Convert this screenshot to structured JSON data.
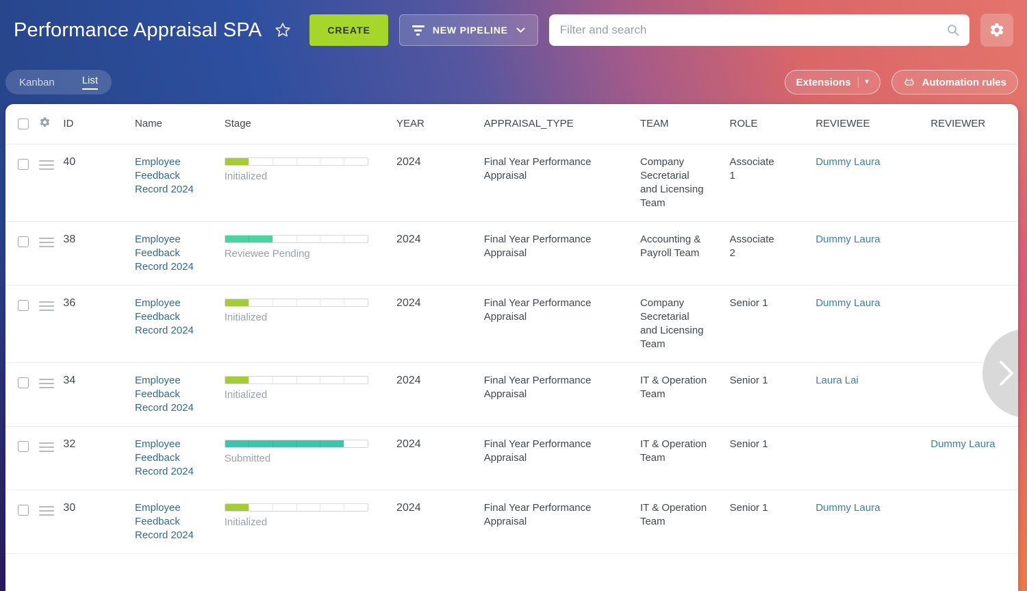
{
  "header": {
    "title": "Performance Appraisal SPA",
    "create_label": "CREATE",
    "new_pipeline_label": "NEW PIPELINE",
    "search_placeholder": "Filter and search"
  },
  "toolbar": {
    "view_kanban": "Kanban",
    "view_list": "List",
    "extensions_label": "Extensions",
    "automation_label": "Automation rules"
  },
  "icons": {
    "favorite": "star-outline",
    "new_pipeline": "funnel",
    "new_pipeline_caret": "chevron-down",
    "search": "magnifier",
    "settings": "gear",
    "columns_settings": "gear",
    "automation": "robot",
    "row_drag": "hamburger",
    "next_page": "chevron-right"
  },
  "colors": {
    "create_button": "#a6d629",
    "stage_initialized": "#a5cc34",
    "stage_reviewee_pending": "#49d5a2",
    "stage_submitted": "#3ec4ad",
    "record_link": "#306b8e",
    "person_link": "#3a7fa8"
  },
  "table": {
    "columns": [
      "ID",
      "Name",
      "Stage",
      "YEAR",
      "APPRAISAL_TYPE",
      "TEAM",
      "ROLE",
      "REVIEWEE",
      "REVIEWER"
    ],
    "rows": [
      {
        "id": "40",
        "name": "Employee Feedback Record 2024",
        "stage_label": "Initialized",
        "stage_filled": 1,
        "stage_total": 6,
        "stage_color": "#a5cc34",
        "year": "2024",
        "appraisal_type": "Final Year Performance Appraisal",
        "team": "Company Secretarial and Licensing Team",
        "role": "Associate 1",
        "reviewee": "Dummy Laura",
        "reviewer": ""
      },
      {
        "id": "38",
        "name": "Employee Feedback Record 2024",
        "stage_label": "Reviewee Pending",
        "stage_filled": 2,
        "stage_total": 6,
        "stage_color": "#49d5a2",
        "year": "2024",
        "appraisal_type": "Final Year Performance Appraisal",
        "team": "Accounting & Payroll Team",
        "role": "Associate 2",
        "reviewee": "Dummy Laura",
        "reviewer": ""
      },
      {
        "id": "36",
        "name": "Employee Feedback Record 2024",
        "stage_label": "Initialized",
        "stage_filled": 1,
        "stage_total": 6,
        "stage_color": "#a5cc34",
        "year": "2024",
        "appraisal_type": "Final Year Performance Appraisal",
        "team": "Company Secretarial and Licensing Team",
        "role": "Senior 1",
        "reviewee": "Dummy Laura",
        "reviewer": ""
      },
      {
        "id": "34",
        "name": "Employee Feedback Record 2024",
        "stage_label": "Initialized",
        "stage_filled": 1,
        "stage_total": 6,
        "stage_color": "#a5cc34",
        "year": "2024",
        "appraisal_type": "Final Year Performance Appraisal",
        "team": "IT & Operation Team",
        "role": "Senior 1",
        "reviewee": "Laura Lai",
        "reviewer": ""
      },
      {
        "id": "32",
        "name": "Employee Feedback Record 2024",
        "stage_label": "Submitted",
        "stage_filled": 5,
        "stage_total": 6,
        "stage_color": "#3ec4ad",
        "year": "2024",
        "appraisal_type": "Final Year Performance Appraisal",
        "team": "IT & Operation Team",
        "role": "Senior 1",
        "reviewee": "",
        "reviewer": "Dummy Laura"
      },
      {
        "id": "30",
        "name": "Employee Feedback Record 2024",
        "stage_label": "Initialized",
        "stage_filled": 1,
        "stage_total": 6,
        "stage_color": "#a5cc34",
        "year": "2024",
        "appraisal_type": "Final Year Performance Appraisal",
        "team": "IT & Operation Team",
        "role": "Senior 1",
        "reviewee": "Dummy Laura",
        "reviewer": ""
      }
    ]
  }
}
